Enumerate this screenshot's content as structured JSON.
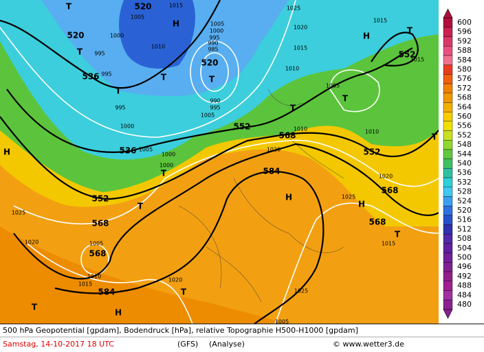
{
  "map": {
    "labels": [
      "T",
      "520",
      "520",
      "H",
      "1015",
      "1005",
      "1000",
      "1010",
      "995",
      "T",
      "536",
      "995",
      "T",
      "T",
      "995",
      "1000",
      "536",
      "1005",
      "520",
      "T",
      "1005",
      "1000",
      "995",
      "990",
      "985",
      "990",
      "995",
      "1005",
      "552",
      "1025",
      "1020",
      "1015",
      "1010",
      "H",
      "1015",
      "T",
      "552",
      "1015",
      "1005",
      "T",
      "T",
      "1010",
      "568",
      "1010",
      "552",
      "T",
      "H",
      "1000",
      "T",
      "1000",
      "584",
      "1020",
      "1020",
      "568",
      "552",
      "T",
      "1025",
      "H",
      "1025",
      "H",
      "568",
      "568",
      "T",
      "1020",
      "1005",
      "568",
      "1015",
      "1010",
      "1015",
      "584",
      "1020",
      "T",
      "1025",
      "T",
      "H",
      "1005"
    ]
  },
  "colorbar": {
    "levels": [
      600,
      596,
      592,
      588,
      584,
      580,
      576,
      572,
      568,
      564,
      560,
      556,
      552,
      548,
      544,
      540,
      536,
      532,
      528,
      524,
      520,
      516,
      512,
      508,
      504,
      500,
      496,
      492,
      488,
      484,
      480
    ],
    "colors": [
      "#b0103c",
      "#c82050",
      "#d83868",
      "#e85080",
      "#f07090",
      "#e83c20",
      "#f06010",
      "#f08000",
      "#f09800",
      "#f4b000",
      "#f8cc00",
      "#f0e000",
      "#c8e020",
      "#90d830",
      "#60c840",
      "#40c060",
      "#30c0a0",
      "#30d0d8",
      "#40c8f0",
      "#3ca0f0",
      "#3070e0",
      "#2850c8",
      "#3030b0",
      "#5028a8",
      "#6020a0",
      "#702098",
      "#802090",
      "#902088",
      "#a02090",
      "#a030a0",
      "#8a2090"
    ]
  },
  "footer": {
    "line1": "500 hPa Geopotential [gpdam], Bodendruck [hPa], relative Topographie H500-H1000 [gpdam]",
    "date": "Samstag, 14-10-2017  18 UTC",
    "model": "(GFS)",
    "run": "(Analyse)",
    "credit": "© www.wetter3.de"
  }
}
